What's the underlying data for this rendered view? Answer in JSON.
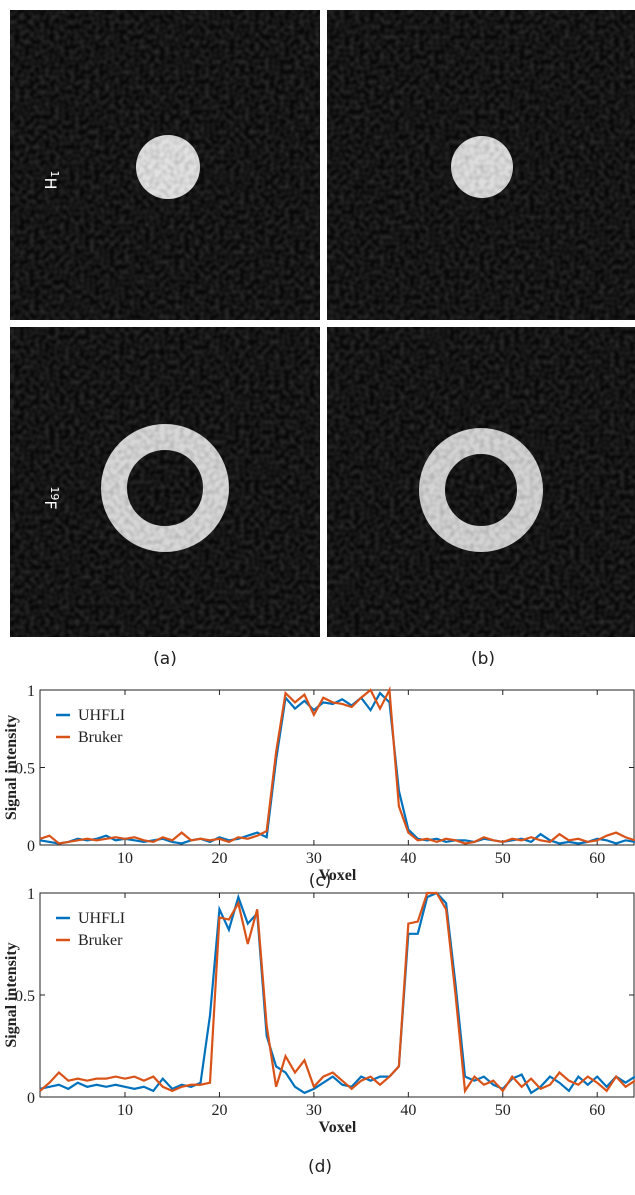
{
  "images": {
    "row_labels": [
      {
        "sup": "1",
        "base": "H"
      },
      {
        "sup": "19",
        "base": "F"
      }
    ],
    "captions": [
      "(a)",
      "(b)"
    ]
  },
  "chart_data": [
    {
      "type": "line",
      "caption": "(c)",
      "xlabel": "Voxel",
      "ylabel": "Signal intensity",
      "legend": "upper left",
      "x": [
        1,
        2,
        3,
        4,
        5,
        6,
        7,
        8,
        9,
        10,
        11,
        12,
        13,
        14,
        15,
        16,
        17,
        18,
        19,
        20,
        21,
        22,
        23,
        24,
        25,
        26,
        27,
        28,
        29,
        30,
        31,
        32,
        33,
        34,
        35,
        36,
        37,
        38,
        39,
        40,
        41,
        42,
        43,
        44,
        45,
        46,
        47,
        48,
        49,
        50,
        51,
        52,
        53,
        54,
        55,
        56,
        57,
        58,
        59,
        60,
        61,
        62,
        63,
        64
      ],
      "series": [
        {
          "name": "UHFLI",
          "color": "#0072bd",
          "values": [
            0.03,
            0.02,
            0.01,
            0.02,
            0.04,
            0.03,
            0.04,
            0.06,
            0.03,
            0.04,
            0.03,
            0.02,
            0.03,
            0.04,
            0.02,
            0.01,
            0.03,
            0.04,
            0.02,
            0.05,
            0.03,
            0.04,
            0.06,
            0.08,
            0.05,
            0.55,
            0.95,
            0.88,
            0.93,
            0.87,
            0.92,
            0.91,
            0.94,
            0.9,
            0.95,
            0.87,
            0.98,
            0.92,
            0.35,
            0.1,
            0.04,
            0.03,
            0.04,
            0.02,
            0.03,
            0.03,
            0.02,
            0.04,
            0.03,
            0.02,
            0.03,
            0.04,
            0.02,
            0.07,
            0.03,
            0.01,
            0.02,
            0.01,
            0.02,
            0.04,
            0.03,
            0.01,
            0.03,
            0.02
          ]
        },
        {
          "name": "Bruker",
          "color": "#d95319",
          "values": [
            0.04,
            0.06,
            0.01,
            0.02,
            0.03,
            0.04,
            0.03,
            0.04,
            0.05,
            0.04,
            0.05,
            0.03,
            0.02,
            0.05,
            0.03,
            0.08,
            0.03,
            0.04,
            0.03,
            0.04,
            0.02,
            0.05,
            0.04,
            0.06,
            0.09,
            0.6,
            0.98,
            0.92,
            0.97,
            0.84,
            0.95,
            0.92,
            0.91,
            0.89,
            0.95,
            1.0,
            0.88,
            1.0,
            0.25,
            0.08,
            0.03,
            0.04,
            0.02,
            0.04,
            0.03,
            0.01,
            0.02,
            0.05,
            0.03,
            0.02,
            0.04,
            0.03,
            0.05,
            0.03,
            0.02,
            0.07,
            0.03,
            0.04,
            0.02,
            0.03,
            0.06,
            0.08,
            0.05,
            0.03
          ]
        }
      ],
      "xlim": [
        1,
        64
      ],
      "ylim": [
        0,
        1
      ],
      "xticks": [
        10,
        20,
        30,
        40,
        50,
        60
      ],
      "yticks": [
        0,
        0.5,
        1
      ]
    },
    {
      "type": "line",
      "caption": "(d)",
      "xlabel": "Voxel",
      "ylabel": "Signal intensity",
      "legend": "upper left",
      "x": [
        1,
        2,
        3,
        4,
        5,
        6,
        7,
        8,
        9,
        10,
        11,
        12,
        13,
        14,
        15,
        16,
        17,
        18,
        19,
        20,
        21,
        22,
        23,
        24,
        25,
        26,
        27,
        28,
        29,
        30,
        31,
        32,
        33,
        34,
        35,
        36,
        37,
        38,
        39,
        40,
        41,
        42,
        43,
        44,
        45,
        46,
        47,
        48,
        49,
        50,
        51,
        52,
        53,
        54,
        55,
        56,
        57,
        58,
        59,
        60,
        61,
        62,
        63,
        64
      ],
      "series": [
        {
          "name": "UHFLI",
          "color": "#0072bd",
          "values": [
            0.04,
            0.05,
            0.06,
            0.04,
            0.07,
            0.05,
            0.06,
            0.05,
            0.06,
            0.05,
            0.04,
            0.05,
            0.03,
            0.09,
            0.04,
            0.06,
            0.05,
            0.07,
            0.4,
            0.92,
            0.82,
            0.98,
            0.85,
            0.9,
            0.3,
            0.15,
            0.12,
            0.05,
            0.02,
            0.04,
            0.07,
            0.1,
            0.06,
            0.05,
            0.1,
            0.08,
            0.1,
            0.1,
            0.15,
            0.8,
            0.8,
            0.98,
            1.0,
            0.95,
            0.55,
            0.1,
            0.08,
            0.1,
            0.06,
            0.04,
            0.09,
            0.11,
            0.02,
            0.05,
            0.1,
            0.07,
            0.03,
            0.1,
            0.06,
            0.1,
            0.05,
            0.1,
            0.07,
            0.1
          ]
        },
        {
          "name": "Bruker",
          "color": "#d95319",
          "values": [
            0.03,
            0.07,
            0.12,
            0.08,
            0.09,
            0.08,
            0.09,
            0.09,
            0.1,
            0.09,
            0.1,
            0.08,
            0.1,
            0.05,
            0.03,
            0.05,
            0.06,
            0.06,
            0.07,
            0.88,
            0.87,
            0.95,
            0.75,
            0.92,
            0.35,
            0.05,
            0.2,
            0.12,
            0.18,
            0.05,
            0.1,
            0.12,
            0.08,
            0.04,
            0.08,
            0.1,
            0.06,
            0.1,
            0.15,
            0.85,
            0.86,
            1.0,
            1.0,
            0.92,
            0.5,
            0.03,
            0.1,
            0.06,
            0.08,
            0.03,
            0.1,
            0.05,
            0.09,
            0.04,
            0.06,
            0.12,
            0.08,
            0.06,
            0.1,
            0.07,
            0.03,
            0.1,
            0.05,
            0.08
          ]
        }
      ],
      "xlim": [
        1,
        64
      ],
      "ylim": [
        0,
        1
      ],
      "xticks": [
        10,
        20,
        30,
        40,
        50,
        60
      ],
      "yticks": [
        0,
        0.5,
        1
      ]
    }
  ]
}
